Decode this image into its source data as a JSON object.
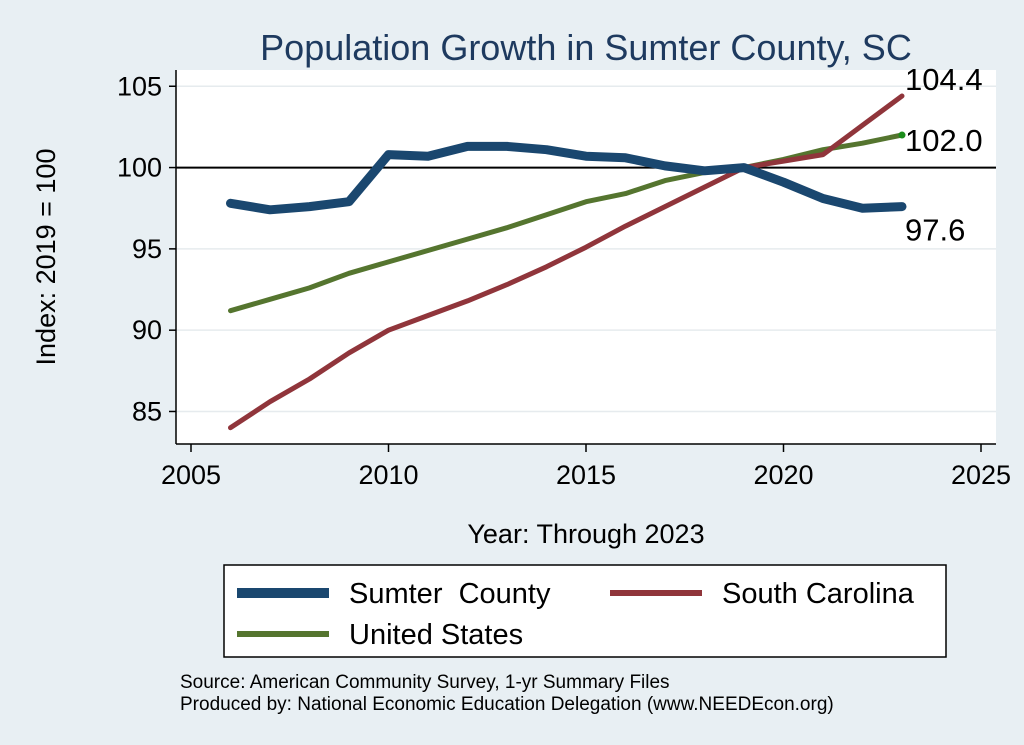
{
  "chart_data": {
    "type": "line",
    "title": "Population Growth in Sumter County, SC",
    "xlabel": "Year: Through 2023",
    "ylabel": "Index: 2019 = 100",
    "xlim": [
      2005,
      2025
    ],
    "ylim": [
      83,
      106
    ],
    "xticks": [
      2005,
      2010,
      2015,
      2020,
      2025
    ],
    "yticks": [
      85,
      90,
      95,
      100,
      105
    ],
    "reference_line": 100,
    "grid": true,
    "legend_position": "bottom",
    "x": [
      2006,
      2007,
      2008,
      2009,
      2010,
      2011,
      2012,
      2013,
      2014,
      2015,
      2016,
      2017,
      2018,
      2019,
      2020,
      2021,
      2022,
      2023
    ],
    "series": [
      {
        "name": "Sumter  County",
        "color": "#1a476f",
        "values": [
          97.8,
          97.4,
          97.6,
          97.9,
          100.8,
          100.7,
          101.3,
          101.3,
          101.1,
          100.7,
          100.6,
          100.1,
          99.8,
          100.0,
          99.1,
          98.1,
          97.5,
          97.6
        ],
        "end_label": "97.6"
      },
      {
        "name": "South Carolina",
        "color": "#90353b",
        "values": [
          84.0,
          85.6,
          87.0,
          88.6,
          90.0,
          90.9,
          91.8,
          92.8,
          93.9,
          95.1,
          96.4,
          97.6,
          98.8,
          100.0,
          100.4,
          100.8,
          102.6,
          104.4
        ],
        "end_label": "104.4"
      },
      {
        "name": "United States",
        "color": "#55752f",
        "values": [
          91.2,
          91.9,
          92.6,
          93.5,
          94.2,
          94.9,
          95.6,
          96.3,
          97.1,
          97.9,
          98.4,
          99.2,
          99.7,
          100.0,
          100.5,
          101.1,
          101.5,
          102.0
        ],
        "end_label": "102.0"
      }
    ]
  },
  "notes": {
    "source": "Source: American Community Survey, 1-yr Summary Files",
    "produced_by": "Produced by: National Economic Education Delegation (www.NEEDEcon.org)"
  }
}
